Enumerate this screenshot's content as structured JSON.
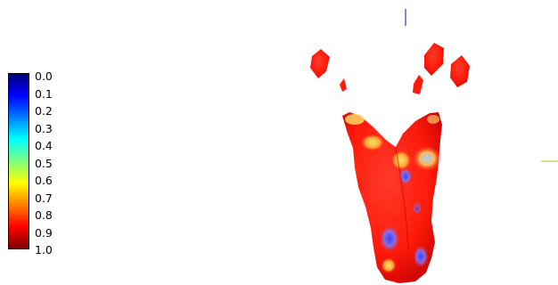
{
  "colorbar": {
    "ticks": [
      "0.0",
      "0.1",
      "0.2",
      "0.3",
      "0.4",
      "0.5",
      "0.6",
      "0.7",
      "0.8",
      "0.9",
      "1.0"
    ],
    "colors": [
      "#00007f",
      "#0000ff",
      "#007fff",
      "#00ffff",
      "#7fff7f",
      "#ffff00",
      "#ff7f00",
      "#ff0000",
      "#7f0000"
    ]
  },
  "surface": {
    "base_color": "#ff1a0a",
    "highlight_colors": [
      "#ffd43a",
      "#6a7dff",
      "#2f45ff"
    ]
  },
  "axis_colors": {
    "vertical": "#5a5ad6",
    "horizontal": "#d6d66a"
  }
}
